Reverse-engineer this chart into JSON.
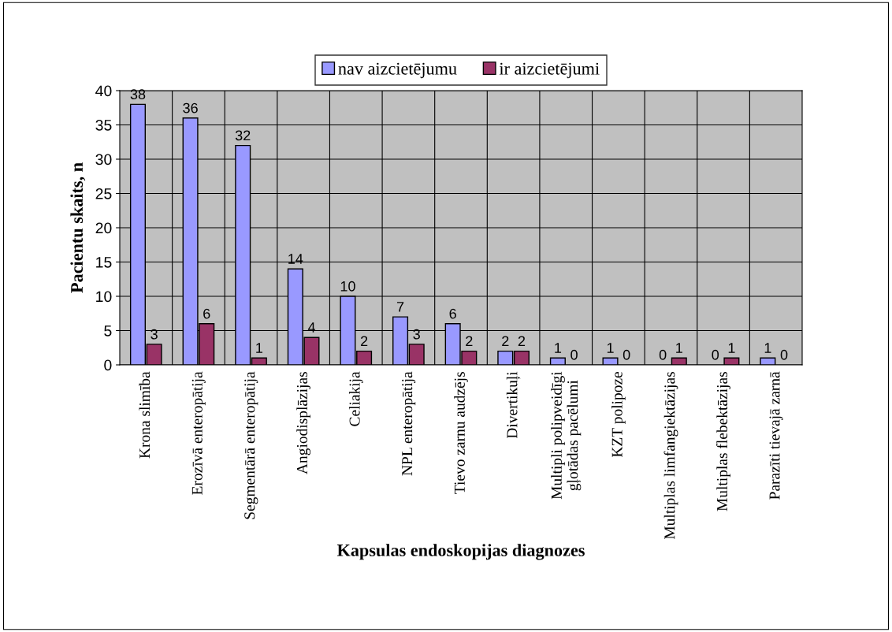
{
  "chart_data": {
    "type": "bar",
    "xlabel": "Kapsulas endoskopijas diagnozes",
    "ylabel": "Pacientu skaits, n",
    "categories": [
      "Krona slimība",
      "Erozīvā enteropātija",
      "Segmentārā enteropātija",
      "Angiodisplāzijas",
      "Celiakija",
      "NPL enteropātija",
      "Tievo zarnu audzējs",
      "Divertikuļi",
      "Multipli polipveidīgi\ngļotādas pacēlumi",
      "KZT polipoze",
      "Multiplas limfangiektāzijas",
      "Multiplas flebektāzijas",
      "Parazīti tievajā zarnā"
    ],
    "series": [
      {
        "name": "nav aizcietējumu",
        "color": "#9999ff",
        "values": [
          38,
          36,
          32,
          14,
          10,
          7,
          6,
          2,
          1,
          1,
          0,
          0,
          1
        ]
      },
      {
        "name": "ir aizcietējumi",
        "color": "#993366",
        "values": [
          3,
          6,
          1,
          4,
          2,
          3,
          2,
          2,
          0,
          0,
          1,
          1,
          0
        ]
      }
    ],
    "ylim": [
      0,
      40
    ],
    "yticks": [
      0,
      5,
      10,
      15,
      20,
      25,
      30,
      35,
      40
    ],
    "grid": true,
    "legend": "top",
    "data_labels": true
  }
}
